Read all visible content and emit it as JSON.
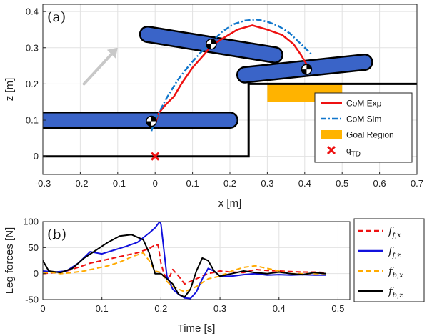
{
  "chart_data": [
    {
      "type": "line",
      "panel_label": "(a)",
      "xlabel": "x [m]",
      "ylabel": "z [m]",
      "xlim": [
        -0.3,
        0.7
      ],
      "ylim": [
        -0.05,
        0.42
      ],
      "xticks": [
        "-0.3",
        "-0.2",
        "-0.1",
        "0",
        "0.1",
        "0.2",
        "0.3",
        "0.4",
        "0.5",
        "0.6",
        "0.7"
      ],
      "yticks": [
        "0",
        "0.1",
        "0.2",
        "0.3",
        "0.4"
      ],
      "grid": true,
      "legend_position": "bottom-right",
      "legend": [
        {
          "label": "CoM Exp",
          "style": "solid",
          "color": "#ee1111"
        },
        {
          "label": "CoM Sim",
          "style": "dash-dot",
          "color": "#1177cc"
        },
        {
          "label": "Goal Region",
          "style": "patch",
          "color": "#ffb300"
        },
        {
          "label": "q",
          "sub": "TD",
          "style": "x-marker",
          "color": "#ee1111"
        }
      ],
      "series": [
        {
          "name": "CoM Exp",
          "color": "#ee1111",
          "style": "solid",
          "x": [
            0.0,
            0.01,
            0.03,
            0.05,
            0.07,
            0.1,
            0.13,
            0.15,
            0.18,
            0.22,
            0.26,
            0.3,
            0.34,
            0.37,
            0.39,
            0.41
          ],
          "y": [
            0.09,
            0.12,
            0.145,
            0.165,
            0.2,
            0.245,
            0.28,
            0.305,
            0.325,
            0.35,
            0.362,
            0.35,
            0.335,
            0.31,
            0.28,
            0.245
          ]
        },
        {
          "name": "CoM Sim",
          "color": "#1177cc",
          "style": "dash-dot",
          "x": [
            -0.01,
            0.0,
            0.03,
            0.06,
            0.09,
            0.12,
            0.15,
            0.18,
            0.21,
            0.24,
            0.27,
            0.3,
            0.33,
            0.36,
            0.39,
            0.42
          ],
          "y": [
            0.07,
            0.1,
            0.16,
            0.21,
            0.25,
            0.285,
            0.315,
            0.345,
            0.365,
            0.375,
            0.378,
            0.372,
            0.36,
            0.34,
            0.31,
            0.28
          ]
        }
      ],
      "terrain": {
        "x": [
          -0.3,
          0.25,
          0.25,
          0.7
        ],
        "z": [
          0.0,
          0.0,
          0.2,
          0.2
        ]
      },
      "goal_region": {
        "x": [
          0.3,
          0.5
        ],
        "z": [
          0.15,
          0.2
        ]
      },
      "q_td": {
        "x": 0.0,
        "z": 0.0
      },
      "robot_links": [
        {
          "x1": -0.35,
          "z1": 0.1,
          "x2": 0.2,
          "z2": 0.1
        },
        {
          "x1": -0.02,
          "z1": 0.337,
          "x2": 0.32,
          "z2": 0.28
        },
        {
          "x1": 0.24,
          "z1": 0.225,
          "x2": 0.56,
          "z2": 0.26
        }
      ],
      "robot_joints": [
        {
          "x": -0.01,
          "z": 0.097
        },
        {
          "x": 0.15,
          "z": 0.31
        },
        {
          "x": 0.405,
          "z": 0.24
        }
      ],
      "arrow": {
        "x1": -0.19,
        "z1": 0.2,
        "x2": -0.1,
        "z2": 0.3,
        "color": "#c8c8c8"
      }
    },
    {
      "type": "line",
      "panel_label": "(b)",
      "xlabel": "Time [s]",
      "ylabel": "Leg forces [N]",
      "xlim": [
        0,
        0.5
      ],
      "xlim_display": [
        0,
        0.52
      ],
      "ylim": [
        -50,
        100
      ],
      "xticks": [
        "0",
        "0.1",
        "0.2",
        "0.3",
        "0.4",
        "0.5"
      ],
      "yticks": [
        "-50",
        "0",
        "50",
        "100"
      ],
      "grid": true,
      "legend_position": "outside-right",
      "series": [
        {
          "name": "f",
          "sub": "f,x",
          "color": "#ee1111",
          "style": "dash",
          "x": [
            0,
            0.02,
            0.04,
            0.06,
            0.08,
            0.1,
            0.12,
            0.14,
            0.16,
            0.18,
            0.19,
            0.195,
            0.2,
            0.205,
            0.21,
            0.215,
            0.22,
            0.23,
            0.24,
            0.26,
            0.28,
            0.3,
            0.32,
            0.34,
            0.36,
            0.38,
            0.4,
            0.42,
            0.44,
            0.46,
            0.48
          ],
          "y": [
            0,
            2,
            5,
            12,
            20,
            25,
            30,
            35,
            40,
            48,
            55,
            55,
            20,
            0,
            -10,
            -5,
            8,
            -5,
            -20,
            -10,
            0,
            5,
            3,
            2,
            8,
            6,
            5,
            4,
            3,
            3,
            2
          ]
        },
        {
          "name": "f",
          "sub": "f,z",
          "color": "#1111dd",
          "style": "solid",
          "x": [
            0,
            0.02,
            0.04,
            0.06,
            0.08,
            0.1,
            0.12,
            0.14,
            0.16,
            0.18,
            0.19,
            0.198,
            0.2,
            0.21,
            0.22,
            0.23,
            0.24,
            0.25,
            0.26,
            0.27,
            0.28,
            0.29,
            0.3,
            0.32,
            0.34,
            0.36,
            0.38,
            0.4,
            0.42,
            0.44,
            0.46,
            0.48
          ],
          "y": [
            5,
            3,
            5,
            20,
            42,
            38,
            45,
            52,
            60,
            78,
            88,
            100,
            95,
            -5,
            -30,
            -40,
            -47,
            -48,
            -35,
            -10,
            10,
            5,
            -5,
            -5,
            -2,
            0,
            -3,
            -2,
            -3,
            -2,
            -3,
            -3
          ]
        },
        {
          "name": "f",
          "sub": "b,x",
          "color": "#ffaa00",
          "style": "dash",
          "x": [
            0,
            0.01,
            0.03,
            0.05,
            0.07,
            0.09,
            0.11,
            0.13,
            0.15,
            0.17,
            0.18,
            0.19,
            0.2,
            0.21,
            0.22,
            0.23,
            0.24,
            0.26,
            0.28,
            0.3,
            0.32,
            0.34,
            0.36,
            0.38,
            0.4,
            0.42,
            0.44,
            0.46,
            0.48
          ],
          "y": [
            0,
            3,
            0,
            2,
            5,
            10,
            15,
            22,
            32,
            40,
            25,
            5,
            2,
            -15,
            -25,
            -30,
            -35,
            -25,
            -10,
            -5,
            5,
            12,
            15,
            10,
            5,
            0,
            0,
            0,
            0
          ]
        },
        {
          "name": "f",
          "sub": "b,z",
          "color": "#000000",
          "style": "solid",
          "x": [
            0,
            0.01,
            0.03,
            0.05,
            0.07,
            0.09,
            0.11,
            0.13,
            0.15,
            0.17,
            0.18,
            0.19,
            0.2,
            0.21,
            0.22,
            0.23,
            0.24,
            0.25,
            0.26,
            0.27,
            0.28,
            0.29,
            0.3,
            0.32,
            0.34,
            0.36,
            0.38,
            0.4,
            0.42,
            0.44,
            0.46,
            0.48
          ],
          "y": [
            25,
            5,
            2,
            10,
            30,
            45,
            60,
            72,
            75,
            65,
            40,
            0,
            0,
            -10,
            -20,
            -40,
            -45,
            -30,
            5,
            30,
            25,
            5,
            -5,
            0,
            5,
            2,
            0,
            3,
            0,
            -2,
            2,
            0
          ]
        }
      ]
    }
  ]
}
